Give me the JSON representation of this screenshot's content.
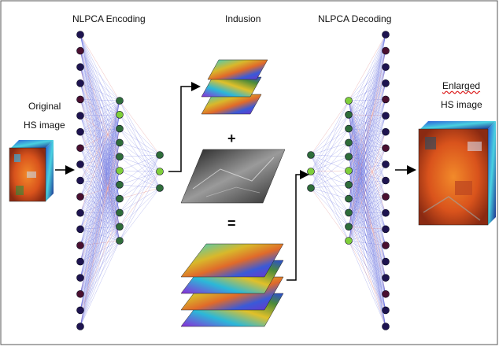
{
  "titles": {
    "encoding": "NLPCA Encoding",
    "indusion": "Indusion",
    "decoding": "NLPCA Decoding"
  },
  "labels": {
    "original_line1": "Original",
    "original_line2": "HS image",
    "enlarged_line1": "Enlarged",
    "enlarged_line2": "HS image",
    "plus": "+",
    "equals": "="
  },
  "colors": {
    "node_dark": "#1e1450",
    "node_maroon": "#4a1030",
    "node_green": "#2f6d3a",
    "node_light_green": "#7fcf3a",
    "edge_blue": "#4b55d8",
    "edge_red": "#d05050"
  }
}
